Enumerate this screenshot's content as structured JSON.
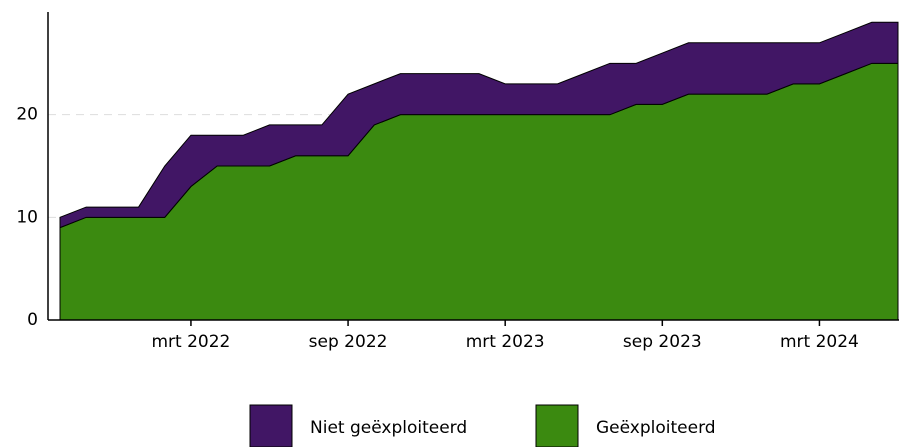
{
  "chart_data": {
    "type": "area",
    "stacked": true,
    "categories": [
      null,
      null,
      null,
      null,
      null,
      "mrt 2022",
      null,
      null,
      null,
      null,
      null,
      "sep 2022",
      null,
      null,
      null,
      null,
      null,
      "mrt 2023",
      null,
      null,
      null,
      null,
      null,
      "sep 2023",
      null,
      null,
      null,
      null,
      null,
      "mrt 2024",
      null,
      null,
      null
    ],
    "series": [
      {
        "name": "Geëxploiteerd",
        "color": "#3b8a10",
        "values": [
          9,
          10,
          10,
          10,
          10,
          13,
          15,
          15,
          15,
          16,
          16,
          16,
          19,
          20,
          20,
          20,
          20,
          20,
          20,
          20,
          20,
          20,
          21,
          21,
          22,
          22,
          22,
          22,
          23,
          23,
          24,
          25,
          25
        ]
      },
      {
        "name": "Niet geëxploiteerd",
        "color": "#411665",
        "values": [
          1,
          1,
          1,
          1,
          5,
          5,
          3,
          3,
          4,
          3,
          3,
          6,
          4,
          4,
          4,
          4,
          4,
          3,
          3,
          3,
          4,
          5,
          4,
          5,
          5,
          5,
          5,
          5,
          4,
          4,
          4,
          4,
          4
        ]
      }
    ],
    "ylim": [
      0,
      30
    ],
    "yticks": [
      0,
      10,
      20
    ],
    "grid": true
  }
}
